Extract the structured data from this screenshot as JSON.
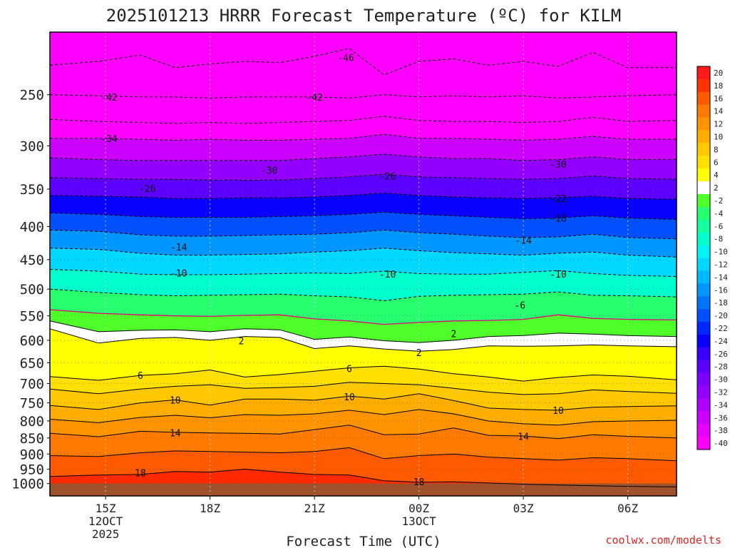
{
  "chart_data": {
    "type": "contour",
    "title": "2025101213 HRRR Forecast Temperature (ºC) for KILM",
    "xlabel": "Forecast Time (UTC)",
    "ylabel": "Pressure (mb)",
    "credit": "coolwx.com/modelts",
    "x_range_hours": [
      -1.6,
      16.4
    ],
    "y_range_mb": [
      1045,
      200
    ],
    "x_ticks": [
      {
        "h": 0,
        "label": "15Z",
        "sub": "12OCT",
        "sub2": "2025"
      },
      {
        "h": 3,
        "label": "18Z"
      },
      {
        "h": 6,
        "label": "21Z"
      },
      {
        "h": 9,
        "label": "00Z",
        "sub": "13OCT"
      },
      {
        "h": 12,
        "label": "03Z"
      },
      {
        "h": 15,
        "label": "06Z"
      }
    ],
    "y_ticks": [
      250,
      300,
      350,
      400,
      450,
      500,
      550,
      600,
      650,
      700,
      750,
      800,
      850,
      900,
      950,
      1000
    ],
    "time_hours": [
      -1.6,
      -0.2,
      1.0,
      2.0,
      3.0,
      4.0,
      5.0,
      6.0,
      7.0,
      8.0,
      9.0,
      10.0,
      11.0,
      12.0,
      13.0,
      14.0,
      15.0,
      16.4
    ],
    "profiles": [
      {
        "temp": -48,
        "p": [
          225,
          222,
          217,
          227,
          224,
          222,
          223,
          218,
          212,
          233,
          222,
          220,
          225,
          222,
          226,
          215,
          227,
          227
        ]
      },
      {
        "temp": -44,
        "p": [
          250,
          251,
          252,
          252,
          253,
          252,
          252,
          252,
          253,
          250,
          252,
          251,
          252,
          251,
          253,
          252,
          251,
          250
        ]
      },
      {
        "temp": -40,
        "p": [
          273,
          275,
          276,
          277,
          276,
          277,
          276,
          275,
          274,
          270,
          274,
          275,
          275,
          276,
          275,
          271,
          275,
          274
        ]
      },
      {
        "temp": -36,
        "p": [
          292,
          292,
          293,
          294,
          293,
          294,
          294,
          293,
          292,
          288,
          292,
          292,
          293,
          294,
          293,
          290,
          293,
          293
        ]
      },
      {
        "temp": -32,
        "p": [
          313,
          315,
          316,
          316,
          316,
          316,
          316,
          314,
          312,
          309,
          312,
          314,
          314,
          316,
          315,
          312,
          315,
          315
        ]
      },
      {
        "temp": -28,
        "p": [
          336,
          337,
          338,
          338,
          339,
          339,
          339,
          337,
          335,
          332,
          335,
          336,
          337,
          338,
          337,
          334,
          337,
          338
        ]
      },
      {
        "temp": -24,
        "p": [
          358,
          359,
          360,
          362,
          362,
          361,
          361,
          360,
          358,
          355,
          358,
          360,
          361,
          362,
          361,
          359,
          362,
          363
        ]
      },
      {
        "temp": -20,
        "p": [
          381,
          383,
          386,
          387,
          387,
          387,
          386,
          385,
          383,
          380,
          383,
          385,
          387,
          389,
          388,
          385,
          388,
          390
        ]
      },
      {
        "temp": -16,
        "p": [
          405,
          407,
          412,
          414,
          414,
          413,
          412,
          411,
          409,
          405,
          409,
          411,
          414,
          416,
          415,
          411,
          416,
          418
        ]
      },
      {
        "temp": -12,
        "p": [
          432,
          434,
          440,
          443,
          443,
          442,
          441,
          438,
          436,
          432,
          436,
          439,
          441,
          443,
          440,
          438,
          443,
          446
        ]
      },
      {
        "temp": -8,
        "p": [
          466,
          469,
          474,
          475,
          475,
          474,
          473,
          472,
          473,
          469,
          473,
          474,
          474,
          471,
          468,
          473,
          476,
          478
        ]
      },
      {
        "temp": -4,
        "p": [
          500,
          506,
          510,
          512,
          511,
          510,
          509,
          512,
          514,
          521,
          513,
          511,
          510,
          509,
          505,
          511,
          512,
          514
        ]
      },
      {
        "temp": 0,
        "p": [
          538,
          545,
          548,
          550,
          551,
          549,
          548,
          556,
          560,
          567,
          563,
          560,
          559,
          557,
          548,
          555,
          557,
          558
        ]
      },
      {
        "temp": 2,
        "p": [
          560,
          582,
          579,
          578,
          582,
          576,
          578,
          598,
          593,
          601,
          605,
          600,
          592,
          590,
          585,
          587,
          590,
          592
        ]
      },
      {
        "temp": 4,
        "p": [
          576,
          606,
          596,
          594,
          600,
          592,
          594,
          618,
          612,
          619,
          624,
          620,
          612,
          613,
          612,
          610,
          612,
          614
        ]
      },
      {
        "temp": 6,
        "p": [
          683,
          692,
          680,
          676,
          667,
          684,
          678,
          670,
          662,
          658,
          665,
          676,
          684,
          694,
          685,
          679,
          682,
          691
        ]
      },
      {
        "temp": 8,
        "p": [
          714,
          726,
          714,
          707,
          703,
          712,
          710,
          707,
          697,
          700,
          703,
          712,
          722,
          728,
          726,
          716,
          720,
          725
        ]
      },
      {
        "temp": 10,
        "p": [
          757,
          768,
          750,
          742,
          756,
          740,
          740,
          743,
          732,
          740,
          726,
          744,
          764,
          768,
          770,
          762,
          760,
          758
        ]
      },
      {
        "temp": 12,
        "p": [
          795,
          805,
          790,
          784,
          791,
          782,
          784,
          780,
          770,
          782,
          768,
          780,
          800,
          808,
          812,
          802,
          800,
          798
        ]
      },
      {
        "temp": 14,
        "p": [
          836,
          846,
          830,
          833,
          835,
          836,
          838,
          825,
          812,
          840,
          838,
          820,
          842,
          844,
          852,
          840,
          845,
          850
        ]
      },
      {
        "temp": 16,
        "p": [
          905,
          908,
          896,
          890,
          892,
          894,
          896,
          892,
          880,
          915,
          905,
          900,
          910,
          915,
          920,
          912,
          915,
          922
        ]
      },
      {
        "temp": 18,
        "p": [
          975,
          970,
          968,
          958,
          960,
          950,
          960,
          968,
          970,
          990,
          995,
          994,
          998,
          1002,
          1005,
          1008,
          1010,
          1012
        ]
      }
    ],
    "labels": [
      {
        "text": "-46",
        "h": 6.9,
        "p": 219
      },
      {
        "text": "-42",
        "h": 0.1,
        "p": 252
      },
      {
        "text": "-42",
        "h": 6.0,
        "p": 252
      },
      {
        "text": "-34",
        "h": 0.1,
        "p": 292
      },
      {
        "text": "-30",
        "h": 4.7,
        "p": 327
      },
      {
        "text": "-26",
        "h": 1.2,
        "p": 349
      },
      {
        "text": "-26",
        "h": 8.1,
        "p": 334
      },
      {
        "text": "-22",
        "h": 13.0,
        "p": 362
      },
      {
        "text": "-18",
        "h": 13.0,
        "p": 388
      },
      {
        "text": "-30",
        "h": 13.0,
        "p": 320
      },
      {
        "text": "-14",
        "h": 2.1,
        "p": 430
      },
      {
        "text": "-14",
        "h": 12.0,
        "p": 420
      },
      {
        "text": "-10",
        "h": 2.1,
        "p": 472
      },
      {
        "text": "-10",
        "h": 8.1,
        "p": 474
      },
      {
        "text": "-10",
        "h": 13.0,
        "p": 474
      },
      {
        "text": "-6",
        "h": 11.9,
        "p": 529
      },
      {
        "text": "2",
        "h": 3.9,
        "p": 601
      },
      {
        "text": "2",
        "h": 10.0,
        "p": 586
      },
      {
        "text": "2",
        "h": 9.0,
        "p": 627
      },
      {
        "text": "6",
        "h": 1.0,
        "p": 680
      },
      {
        "text": "6",
        "h": 7.0,
        "p": 664
      },
      {
        "text": "10",
        "h": 2.0,
        "p": 742
      },
      {
        "text": "10",
        "h": 7.0,
        "p": 734
      },
      {
        "text": "10",
        "h": 13.0,
        "p": 770
      },
      {
        "text": "14",
        "h": 2.0,
        "p": 834
      },
      {
        "text": "14",
        "h": 12.0,
        "p": 845
      },
      {
        "text": "18",
        "h": 1.0,
        "p": 962
      },
      {
        "text": "18",
        "h": 9.0,
        "p": 993
      }
    ],
    "colorbar": {
      "bins": [
        {
          "label": "20",
          "color": "#ff1a1a"
        },
        {
          "label": "18",
          "color": "#ff3300"
        },
        {
          "label": "16",
          "color": "#ff5a00"
        },
        {
          "label": "14",
          "color": "#ff7a00"
        },
        {
          "label": "12",
          "color": "#ff9400"
        },
        {
          "label": "10",
          "color": "#ffae00"
        },
        {
          "label": "8",
          "color": "#ffc800"
        },
        {
          "label": "6",
          "color": "#ffe000"
        },
        {
          "label": "4",
          "color": "#ffff00"
        },
        {
          "label": "2",
          "color": "#ffffff"
        },
        {
          "label": "-2",
          "color": "#4eff2a"
        },
        {
          "label": "-4",
          "color": "#28ff6e"
        },
        {
          "label": "-6",
          "color": "#15ff9c"
        },
        {
          "label": "-8",
          "color": "#00ffcc"
        },
        {
          "label": "-10",
          "color": "#00f4f4"
        },
        {
          "label": "-12",
          "color": "#00d8ff"
        },
        {
          "label": "-14",
          "color": "#00b8ff"
        },
        {
          "label": "-16",
          "color": "#0096ff"
        },
        {
          "label": "-18",
          "color": "#0074ff"
        },
        {
          "label": "-20",
          "color": "#0050ff"
        },
        {
          "label": "-22",
          "color": "#0028ff"
        },
        {
          "label": "-24",
          "color": "#0a00ff"
        },
        {
          "label": "-26",
          "color": "#3a00ff"
        },
        {
          "label": "-28",
          "color": "#5c00ff"
        },
        {
          "label": "-30",
          "color": "#7a00ff"
        },
        {
          "label": "-32",
          "color": "#9400ff"
        },
        {
          "label": "-34",
          "color": "#b000ff"
        },
        {
          "label": "-36",
          "color": "#cc00ff"
        },
        {
          "label": "-38",
          "color": "#e600ff"
        },
        {
          "label": "-40",
          "color": "#ff00ff"
        }
      ]
    },
    "colors": {
      "ground": "#a0522d",
      "top_fill": "#ff00ff",
      "bottom_fill": "#ff2a00",
      "freezing_line": "#e6007a",
      "contour": "#000000",
      "grid": "#888888"
    }
  }
}
